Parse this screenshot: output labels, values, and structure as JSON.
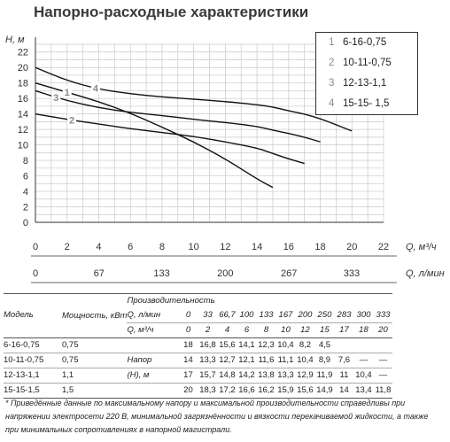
{
  "title": "Напорно-расходные характеристики",
  "chart_data": {
    "type": "line",
    "ylabel": "H, м",
    "xlabel": "Q, м³/ч",
    "x2label": "Q, л/мин",
    "xlim": [
      0,
      22
    ],
    "ylim": [
      0,
      23
    ],
    "yticks": [
      "0",
      "2",
      "4",
      "6",
      "8",
      "10",
      "12",
      "14",
      "16",
      "18",
      "20",
      "22"
    ],
    "xticks": [
      "0",
      "2",
      "4",
      "6",
      "8",
      "10",
      "12",
      "14",
      "16",
      "18",
      "20",
      "22"
    ],
    "x2ticks": [
      "0",
      "67",
      "133",
      "200",
      "267",
      "333"
    ],
    "grid": true,
    "legend_position": "top-right",
    "series": [
      {
        "name": "6-16-0,75",
        "label": "1",
        "x": [
          0,
          2,
          4,
          6,
          8,
          10,
          12,
          14,
          15
        ],
        "y": [
          18,
          16.8,
          15.6,
          14.1,
          12.3,
          10.4,
          8.2,
          5.6,
          4.5
        ]
      },
      {
        "name": "10-11-0,75",
        "label": "2",
        "x": [
          0,
          2,
          4,
          6,
          8,
          10,
          12,
          14,
          15,
          16,
          17
        ],
        "y": [
          14,
          13.3,
          12.7,
          12.1,
          11.6,
          11.1,
          10.4,
          9.6,
          8.9,
          8.2,
          7.6
        ]
      },
      {
        "name": "12-13-1,1",
        "label": "3",
        "x": [
          0,
          2,
          4,
          6,
          8,
          10,
          12,
          14,
          15,
          16,
          17,
          18
        ],
        "y": [
          17,
          15.7,
          14.8,
          14.2,
          13.8,
          13.3,
          12.9,
          12.4,
          11.9,
          11.5,
          11,
          10.4
        ]
      },
      {
        "name": "15-15- 1,5",
        "label": "4",
        "x": [
          0,
          2,
          4,
          6,
          8,
          10,
          12,
          14,
          15,
          16,
          17,
          18,
          19,
          20
        ],
        "y": [
          20,
          18.3,
          17.2,
          16.6,
          16.2,
          15.9,
          15.6,
          15.2,
          14.9,
          14.4,
          14,
          13.4,
          12.6,
          11.8
        ]
      }
    ]
  },
  "table": {
    "model_header": "Модель",
    "power_header": "Мощность, кВт",
    "perf_header": "Производительность",
    "q_lmin_label": "Q, л/мин",
    "q_m3_label": "Q, м³/ч",
    "q_lmin": [
      "0",
      "33",
      "66,7",
      "100",
      "133",
      "167",
      "200",
      "250",
      "283",
      "300",
      "333"
    ],
    "q_m3": [
      "0",
      "2",
      "4",
      "6",
      "8",
      "10",
      "12",
      "15",
      "17",
      "18",
      "20"
    ],
    "head_label_1": "Напор",
    "head_label_2": "(H), м",
    "rows": [
      {
        "model": "6-16-0,75",
        "power": "0,75",
        "values": [
          "18",
          "16,8",
          "15,6",
          "14,1",
          "12,3",
          "10,4",
          "8,2",
          "4,5",
          "",
          "",
          ""
        ]
      },
      {
        "model": "10-11-0,75",
        "power": "0,75",
        "values": [
          "14",
          "13,3",
          "12,7",
          "12,1",
          "11,6",
          "11,1",
          "10,4",
          "8,9",
          "7,6",
          "—",
          "—"
        ]
      },
      {
        "model": "12-13-1,1",
        "power": "1,1",
        "values": [
          "17",
          "15,7",
          "14,8",
          "14,2",
          "13,8",
          "13,3",
          "12,9",
          "11,9",
          "11",
          "10,4",
          "—"
        ]
      },
      {
        "model": "15-15-1,5",
        "power": "1,5",
        "values": [
          "20",
          "18,3",
          "17,2",
          "16,6",
          "16,2",
          "15,9",
          "15,6",
          "14,9",
          "14",
          "13,4",
          "11,8"
        ]
      }
    ]
  },
  "footnote": "* Приведённые данные по максимальному напору и максимальной производительности справедливы при напряжении электросети 220 В, минимальной загрязнённости и вязкости перекачиваемой жидкости, а также при минимальных сопротивлениях в напорной магистрали.",
  "colors": {
    "line": "#111111",
    "grid": "#c8c8c8",
    "legend_num": "#8a8a8a"
  }
}
